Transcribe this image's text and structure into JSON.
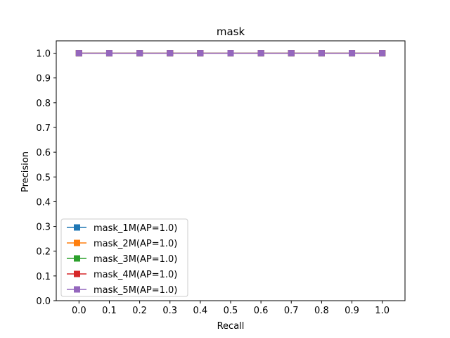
{
  "chart_data": {
    "type": "line",
    "title": "mask",
    "xlabel": "Recall",
    "ylabel": "Precision",
    "xlim": [
      -0.075,
      1.075
    ],
    "ylim": [
      0.0,
      1.05
    ],
    "xticks": [
      "0.0",
      "0.1",
      "0.2",
      "0.3",
      "0.4",
      "0.5",
      "0.6",
      "0.7",
      "0.8",
      "0.9",
      "1.0"
    ],
    "yticks": [
      "0.0",
      "0.1",
      "0.2",
      "0.3",
      "0.4",
      "0.5",
      "0.6",
      "0.7",
      "0.8",
      "0.9",
      "1.0"
    ],
    "x": [
      0.0,
      0.1,
      0.2,
      0.3,
      0.4,
      0.5,
      0.6,
      0.7,
      0.8,
      0.9,
      1.0
    ],
    "marker": "square",
    "grid": false,
    "legend_position": "lower-left",
    "series": [
      {
        "name": "mask_1M(AP=1.0)",
        "color": "#1f77b4",
        "values": [
          1.0,
          1.0,
          1.0,
          1.0,
          1.0,
          1.0,
          1.0,
          1.0,
          1.0,
          1.0,
          1.0
        ]
      },
      {
        "name": "mask_2M(AP=1.0)",
        "color": "#ff7f0e",
        "values": [
          1.0,
          1.0,
          1.0,
          1.0,
          1.0,
          1.0,
          1.0,
          1.0,
          1.0,
          1.0,
          1.0
        ]
      },
      {
        "name": "mask_3M(AP=1.0)",
        "color": "#2ca02c",
        "values": [
          1.0,
          1.0,
          1.0,
          1.0,
          1.0,
          1.0,
          1.0,
          1.0,
          1.0,
          1.0,
          1.0
        ]
      },
      {
        "name": "mask_4M(AP=1.0)",
        "color": "#d62728",
        "values": [
          1.0,
          1.0,
          1.0,
          1.0,
          1.0,
          1.0,
          1.0,
          1.0,
          1.0,
          1.0,
          1.0
        ]
      },
      {
        "name": "mask_5M(AP=1.0)",
        "color": "#9467bd",
        "values": [
          1.0,
          1.0,
          1.0,
          1.0,
          1.0,
          1.0,
          1.0,
          1.0,
          1.0,
          1.0,
          1.0
        ]
      }
    ]
  }
}
